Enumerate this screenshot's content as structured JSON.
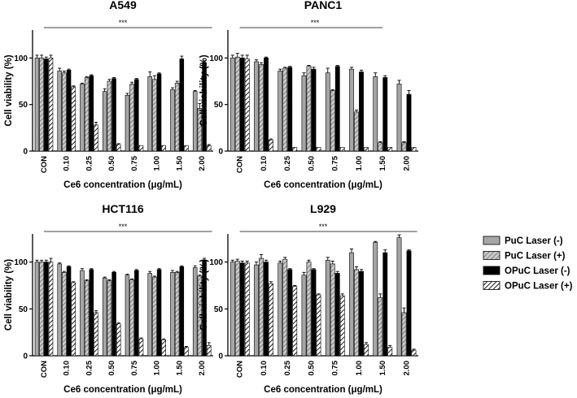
{
  "legend": [
    {
      "label": "PuC Laser (-)",
      "fill": "#a6a6a6",
      "pattern": "none"
    },
    {
      "label": "PuC Laser (+)",
      "fill": "#c8c8c8",
      "pattern": "hatch-gray"
    },
    {
      "label": "OPuC Laser (-)",
      "fill": "#000000",
      "pattern": "none"
    },
    {
      "label": "OPuC Laser (+)",
      "fill": "#ffffff",
      "pattern": "hatch-black"
    }
  ],
  "chart_data": [
    {
      "type": "bar",
      "title": "A549",
      "xlabel": "Ce6 concentration (μg/mL)",
      "ylabel": "Cell viability (%)",
      "ylim": [
        0,
        130
      ],
      "yticks": [
        "0",
        "50",
        "100"
      ],
      "significance": "***",
      "categories": [
        "CON",
        "0.10",
        "0.25",
        "0.50",
        "0.75",
        "1.00",
        "1.50",
        "2.00"
      ],
      "series": [
        {
          "name": "PuC Laser (-)",
          "values": [
            100,
            86,
            72,
            64,
            60,
            80,
            66,
            64
          ],
          "errors": [
            3,
            3,
            1,
            3,
            2,
            5,
            2,
            1
          ]
        },
        {
          "name": "PuC Laser (+)",
          "values": [
            100,
            84,
            79,
            75,
            72,
            77,
            73,
            46
          ],
          "errors": [
            3,
            2,
            1,
            2,
            2,
            4,
            2,
            5
          ]
        },
        {
          "name": "OPuC Laser (-)",
          "values": [
            99,
            87,
            81,
            78,
            77,
            83,
            99,
            95
          ],
          "errors": [
            2,
            1,
            1,
            1,
            1,
            1,
            3,
            1
          ]
        },
        {
          "name": "OPuC Laser (+)",
          "values": [
            100,
            69,
            28,
            7,
            6,
            6,
            6,
            6
          ],
          "errors": [
            3,
            1,
            3,
            1,
            0,
            0,
            0,
            1
          ]
        }
      ]
    },
    {
      "type": "bar",
      "title": "PANC1",
      "xlabel": "Ce6 concentration (μg/mL)",
      "ylabel": "Cell viability (%)",
      "ylim": [
        0,
        130
      ],
      "yticks": [
        "0",
        "50",
        "100"
      ],
      "significance": "***",
      "categories": [
        "CON",
        "0.10",
        "0.25",
        "0.50",
        "0.75",
        "1.00",
        "1.50",
        "2.00"
      ],
      "series": [
        {
          "name": "PuC Laser (-)",
          "values": [
            100,
            96,
            86,
            81,
            84,
            88,
            80,
            72
          ],
          "errors": [
            3,
            2,
            2,
            3,
            5,
            2,
            4,
            4
          ]
        },
        {
          "name": "PuC Laser (+)",
          "values": [
            101,
            93,
            89,
            91,
            65,
            42,
            9,
            9
          ],
          "errors": [
            4,
            2,
            1,
            1,
            1,
            2,
            1,
            1
          ]
        },
        {
          "name": "OPuC Laser (-)",
          "values": [
            100,
            100,
            90,
            88,
            91,
            85,
            79,
            61
          ],
          "errors": [
            3,
            1,
            1,
            2,
            1,
            2,
            2,
            4
          ]
        },
        {
          "name": "OPuC Laser (+)",
          "values": [
            99,
            12,
            4,
            4,
            4,
            4,
            4,
            4
          ],
          "errors": [
            4,
            1,
            0,
            0,
            0,
            0,
            0,
            0
          ]
        }
      ]
    },
    {
      "type": "bar",
      "title": "HCT116",
      "xlabel": "Ce6 concentration (μg/mL)",
      "ylabel": "Cell viability (%)",
      "ylim": [
        0,
        130
      ],
      "yticks": [
        "0",
        "50",
        "100"
      ],
      "significance": "***",
      "categories": [
        "CON",
        "0.10",
        "0.25",
        "0.50",
        "0.75",
        "1.00",
        "1.50",
        "2.00"
      ],
      "series": [
        {
          "name": "PuC Laser (-)",
          "values": [
            100,
            98,
            91,
            83,
            86,
            88,
            89,
            94
          ],
          "errors": [
            2,
            1,
            2,
            1,
            1,
            2,
            2,
            2
          ]
        },
        {
          "name": "PuC Laser (+)",
          "values": [
            100,
            89,
            80,
            80,
            81,
            84,
            89,
            85
          ],
          "errors": [
            2,
            1,
            1,
            1,
            1,
            1,
            1,
            1
          ]
        },
        {
          "name": "OPuC Laser (-)",
          "values": [
            100,
            95,
            92,
            89,
            91,
            92,
            95,
            102
          ],
          "errors": [
            2,
            1,
            1,
            1,
            1,
            1,
            1,
            2
          ]
        },
        {
          "name": "OPuC Laser (+)",
          "values": [
            100,
            78,
            46,
            34,
            18,
            17,
            9,
            11
          ],
          "errors": [
            4,
            1,
            2,
            1,
            1,
            1,
            1,
            3
          ]
        }
      ]
    },
    {
      "type": "bar",
      "title": "L929",
      "xlabel": "Ce6 concentration (μg/mL)",
      "ylabel": "Cell viability (%)",
      "ylim": [
        0,
        130
      ],
      "yticks": [
        "0",
        "50",
        "100"
      ],
      "significance": "***",
      "categories": [
        "CON",
        "0.10",
        "0.25",
        "0.50",
        "0.75",
        "1.00",
        "1.50",
        "2.00"
      ],
      "series": [
        {
          "name": "PuC Laser (-)",
          "values": [
            100,
            97,
            99,
            86,
            102,
            110,
            121,
            126
          ],
          "errors": [
            2,
            3,
            2,
            3,
            3,
            4,
            1,
            3
          ]
        },
        {
          "name": "PuC Laser (+)",
          "values": [
            101,
            104,
            103,
            100,
            98,
            92,
            62,
            46
          ],
          "errors": [
            2,
            4,
            2,
            2,
            3,
            3,
            4,
            5
          ]
        },
        {
          "name": "OPuC Laser (-)",
          "values": [
            99,
            100,
            92,
            92,
            88,
            90,
            110,
            112
          ],
          "errors": [
            2,
            2,
            1,
            1,
            2,
            2,
            3,
            1
          ]
        },
        {
          "name": "OPuC Laser (+)",
          "values": [
            99,
            77,
            74,
            65,
            64,
            12,
            9,
            6
          ],
          "errors": [
            2,
            2,
            1,
            1,
            2,
            2,
            2,
            1
          ]
        }
      ]
    }
  ]
}
